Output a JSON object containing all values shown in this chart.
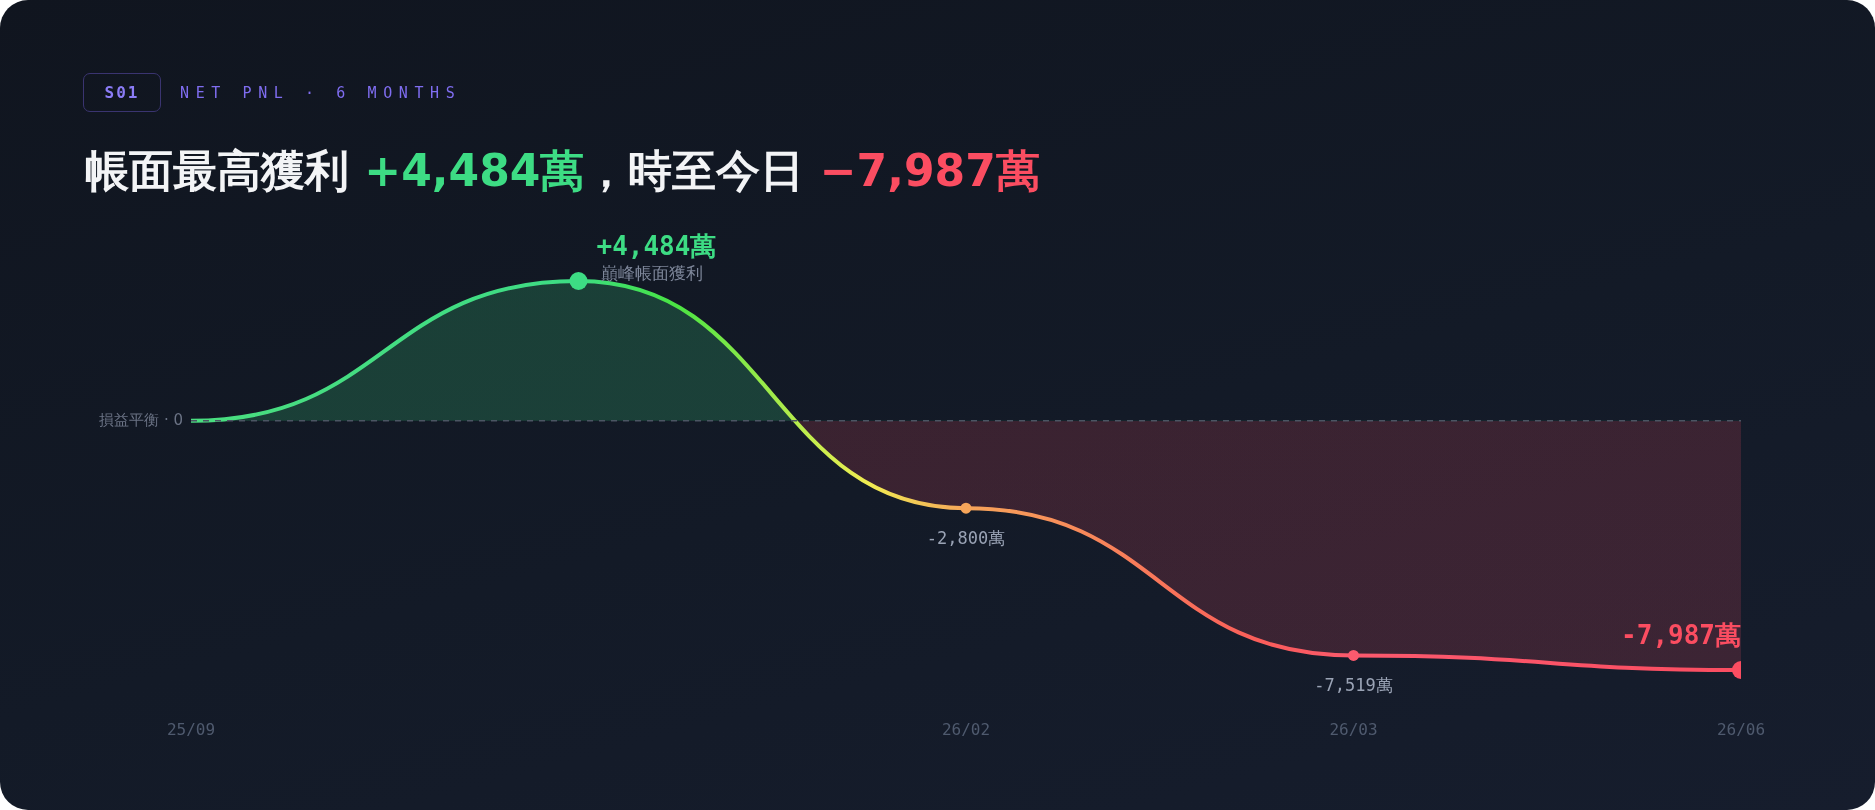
{
  "chart_data": {
    "type": "area",
    "title": "帳面最高獲利 +4,484萬，時至今日 −7,987萬",
    "subtitle": "NET PNL · 6 MONTHS",
    "annotations": [
      "S01",
      "巔峰帳面獲利"
    ],
    "categories": [
      "25/09",
      null,
      "26/02",
      "26/03",
      "26/06"
    ],
    "series": [
      {
        "values": [
          0,
          4484,
          -2800,
          -7519,
          -7987
        ],
        "colors": [
          "#4ade80",
          "#3ddc84",
          "#f6a55a",
          "#fb5a6e",
          "#fb4d61"
        ],
        "value_labels": [
          null,
          "+4,484萬",
          "-2,800萬",
          "-7,519萬",
          "-7,987萬"
        ]
      }
    ],
    "ref_lines": [
      {
        "axis": "y",
        "value": 0,
        "label": "損益平衡 · 0",
        "color": "#4b5563",
        "line_style": "dashed"
      }
    ],
    "marker": "circle",
    "tick_labels": "x"
  }
}
